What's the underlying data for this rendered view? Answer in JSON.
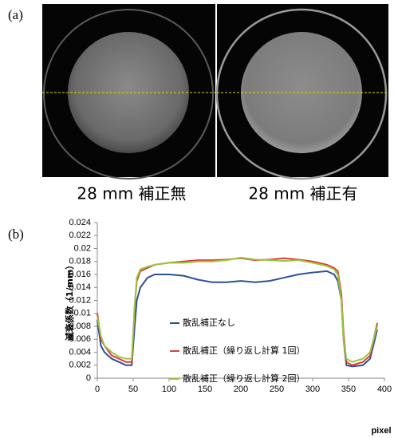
{
  "panel_a": {
    "label": "(a)",
    "images": [
      {
        "caption": "28 mm 補正無"
      },
      {
        "caption": "28 mm 補正有"
      }
    ]
  },
  "chart_data": {
    "type": "line",
    "label": "(b)",
    "y_label": "減衰係数（1/mm）",
    "x_label": "pixel",
    "x": [
      0,
      5,
      10,
      20,
      30,
      40,
      48,
      52,
      55,
      60,
      70,
      80,
      100,
      120,
      140,
      160,
      180,
      200,
      220,
      240,
      260,
      280,
      300,
      320,
      330,
      335,
      340,
      343,
      347,
      355,
      370,
      380,
      390
    ],
    "series": [
      {
        "name": "散乱補正なし",
        "color": "#2e4f9a",
        "values": [
          0.009,
          0.005,
          0.004,
          0.003,
          0.0025,
          0.002,
          0.002,
          0.008,
          0.012,
          0.014,
          0.0155,
          0.016,
          0.016,
          0.0158,
          0.0152,
          0.0148,
          0.0148,
          0.015,
          0.0148,
          0.015,
          0.0155,
          0.016,
          0.0163,
          0.0165,
          0.016,
          0.015,
          0.012,
          0.006,
          0.002,
          0.0018,
          0.002,
          0.003,
          0.0075
        ]
      },
      {
        "name": "散乱補正（繰り返し計算 1回）",
        "color": "#d9403b",
        "values": [
          0.01,
          0.006,
          0.005,
          0.0035,
          0.003,
          0.0025,
          0.0025,
          0.011,
          0.015,
          0.0165,
          0.017,
          0.0175,
          0.0178,
          0.018,
          0.0182,
          0.0182,
          0.0183,
          0.0185,
          0.0182,
          0.0183,
          0.0185,
          0.0183,
          0.018,
          0.0175,
          0.017,
          0.0165,
          0.013,
          0.007,
          0.0025,
          0.002,
          0.0025,
          0.0035,
          0.0085
        ]
      },
      {
        "name": "散乱補正（繰り返し計算 2回）",
        "color": "#9bc53d",
        "values": [
          0.0095,
          0.0065,
          0.005,
          0.004,
          0.0033,
          0.003,
          0.003,
          0.011,
          0.0155,
          0.0168,
          0.0172,
          0.0175,
          0.0178,
          0.0178,
          0.018,
          0.018,
          0.0182,
          0.0186,
          0.0183,
          0.0182,
          0.0181,
          0.0182,
          0.0178,
          0.0173,
          0.0168,
          0.016,
          0.012,
          0.006,
          0.003,
          0.0025,
          0.003,
          0.004,
          0.008
        ]
      }
    ],
    "xlim": [
      0,
      400
    ],
    "xticks": [
      0,
      50,
      100,
      150,
      200,
      250,
      300,
      350,
      400
    ],
    "ylim": [
      0,
      0.024
    ],
    "yticks": [
      0,
      0.002,
      0.004,
      0.006,
      0.008,
      0.01,
      0.012,
      0.014,
      0.016,
      0.018,
      0.02,
      0.022,
      0.024
    ],
    "grid": false,
    "legend": "lower-center"
  }
}
